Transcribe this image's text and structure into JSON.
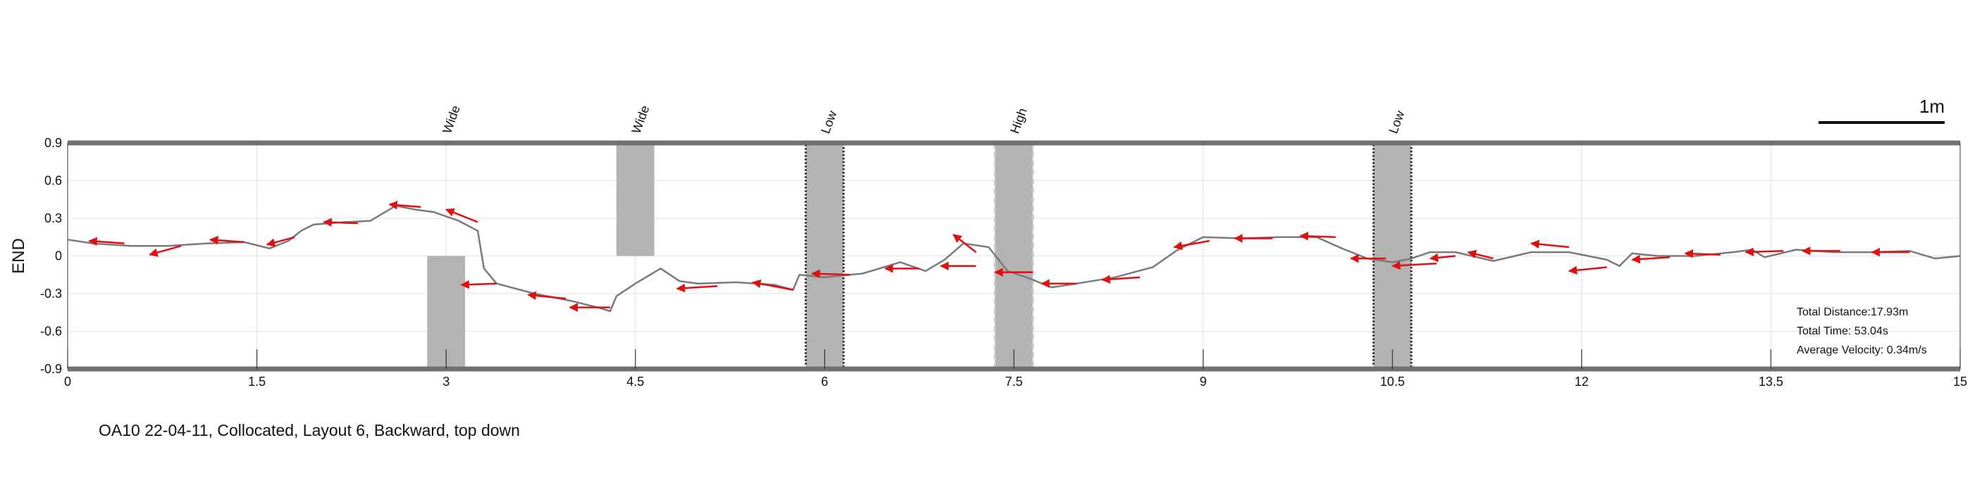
{
  "caption": "OA10 22-04-11, Collocated, Layout 6, Backward, top down",
  "colors": {
    "path": "#7a7a7a",
    "arrow": "#e01010",
    "obstacle": "#b3b3b3",
    "wall": "#707070",
    "grid": "#e2e2e2"
  },
  "chart_data": {
    "type": "line",
    "xlim": [
      0,
      15
    ],
    "ylim": [
      -0.9,
      0.9
    ],
    "ylabel": "END",
    "xlabel": "",
    "xticks": [
      0,
      1.5,
      3,
      4.5,
      6,
      7.5,
      9,
      10.5,
      12,
      13.5,
      15
    ],
    "xtick_labels": [
      "0",
      "1.5",
      "3",
      "4.5",
      "6",
      "7.5",
      "9",
      "10.5",
      "12",
      "13.5",
      "15"
    ],
    "yticks": [
      0.9,
      0.6,
      0.3,
      0,
      -0.3,
      -0.6,
      -0.9
    ],
    "ytick_labels": [
      "0.9",
      "0.6",
      "0.3",
      "0",
      "-0.3",
      "-0.6",
      "-0.9"
    ],
    "grid": true,
    "scale_bar": {
      "label": "1m",
      "length": 1
    },
    "obstacles": [
      {
        "label": "Wide",
        "x": [
          2.85,
          3.15
        ],
        "y": [
          -0.9,
          0
        ],
        "style": "solid"
      },
      {
        "label": "Wide",
        "x": [
          4.35,
          4.65
        ],
        "y": [
          0,
          0.9
        ],
        "style": "solid"
      },
      {
        "label": "Low",
        "x": [
          5.85,
          6.15
        ],
        "y": [
          -0.9,
          0.9
        ],
        "style": "dotted"
      },
      {
        "label": "High",
        "x": [
          7.35,
          7.65
        ],
        "y": [
          -0.9,
          0.9
        ],
        "style": "dashed"
      },
      {
        "label": "Low",
        "x": [
          10.35,
          10.65
        ],
        "y": [
          -0.9,
          0.9
        ],
        "style": "dotted"
      }
    ],
    "trajectory": {
      "x": [
        0,
        0.2,
        0.5,
        0.8,
        1.1,
        1.4,
        1.6,
        1.75,
        1.85,
        1.95,
        2.2,
        2.4,
        2.6,
        2.75,
        2.9,
        3.1,
        3.25,
        3.3,
        3.4,
        3.7,
        4.0,
        4.2,
        4.3,
        4.35,
        4.5,
        4.7,
        4.85,
        5.0,
        5.3,
        5.6,
        5.75,
        5.8,
        6.0,
        6.3,
        6.6,
        6.8,
        6.95,
        7.1,
        7.3,
        7.45,
        7.6,
        7.8,
        8.0,
        8.3,
        8.6,
        8.8,
        9.0,
        9.3,
        9.6,
        9.9,
        10.1,
        10.3,
        10.5,
        10.65,
        10.8,
        11.0,
        11.3,
        11.6,
        11.9,
        12.2,
        12.3,
        12.4,
        12.6,
        12.9,
        13.2,
        13.35,
        13.45,
        13.7,
        14.0,
        14.3,
        14.6,
        14.8,
        15.0
      ],
      "y": [
        0.13,
        0.1,
        0.08,
        0.08,
        0.1,
        0.11,
        0.06,
        0.12,
        0.2,
        0.25,
        0.27,
        0.28,
        0.4,
        0.37,
        0.35,
        0.28,
        0.2,
        -0.1,
        -0.22,
        -0.3,
        -0.36,
        -0.41,
        -0.44,
        -0.32,
        -0.22,
        -0.1,
        -0.2,
        -0.22,
        -0.21,
        -0.23,
        -0.27,
        -0.15,
        -0.17,
        -0.14,
        -0.05,
        -0.12,
        -0.03,
        0.1,
        0.07,
        -0.12,
        -0.17,
        -0.25,
        -0.22,
        -0.17,
        -0.09,
        0.05,
        0.15,
        0.14,
        0.15,
        0.15,
        0.06,
        -0.02,
        -0.05,
        -0.02,
        0.03,
        0.03,
        -0.04,
        0.03,
        0.03,
        -0.03,
        -0.08,
        0.02,
        0.0,
        0.0,
        0.03,
        0.05,
        -0.01,
        0.05,
        0.03,
        0.03,
        0.04,
        -0.02,
        0.0
      ]
    },
    "orientation_arrows": [
      {
        "x": 0.45,
        "y": 0.1,
        "dx": -0.28,
        "dy": 0.02
      },
      {
        "x": 0.9,
        "y": 0.08,
        "dx": -0.25,
        "dy": -0.07
      },
      {
        "x": 1.4,
        "y": 0.11,
        "dx": -0.27,
        "dy": 0.02
      },
      {
        "x": 1.8,
        "y": 0.15,
        "dx": -0.22,
        "dy": -0.06
      },
      {
        "x": 2.3,
        "y": 0.26,
        "dx": -0.27,
        "dy": 0.01
      },
      {
        "x": 2.8,
        "y": 0.39,
        "dx": -0.25,
        "dy": 0.02
      },
      {
        "x": 3.25,
        "y": 0.27,
        "dx": -0.25,
        "dy": 0.1
      },
      {
        "x": 3.4,
        "y": -0.22,
        "dx": -0.28,
        "dy": -0.01
      },
      {
        "x": 3.95,
        "y": -0.34,
        "dx": -0.3,
        "dy": 0.03
      },
      {
        "x": 4.3,
        "y": -0.41,
        "dx": -0.32,
        "dy": 0.0
      },
      {
        "x": 5.15,
        "y": -0.24,
        "dx": -0.32,
        "dy": -0.02
      },
      {
        "x": 5.75,
        "y": -0.27,
        "dx": -0.32,
        "dy": 0.06
      },
      {
        "x": 6.2,
        "y": -0.15,
        "dx": -0.3,
        "dy": 0.01
      },
      {
        "x": 6.75,
        "y": -0.1,
        "dx": -0.27,
        "dy": 0.0
      },
      {
        "x": 7.2,
        "y": -0.08,
        "dx": -0.28,
        "dy": 0.0
      },
      {
        "x": 7.2,
        "y": 0.03,
        "dx": -0.18,
        "dy": 0.14
      },
      {
        "x": 7.65,
        "y": -0.13,
        "dx": -0.3,
        "dy": 0.0
      },
      {
        "x": 8.0,
        "y": -0.22,
        "dx": -0.28,
        "dy": 0.0
      },
      {
        "x": 8.5,
        "y": -0.17,
        "dx": -0.3,
        "dy": -0.02
      },
      {
        "x": 9.05,
        "y": 0.12,
        "dx": -0.28,
        "dy": -0.05
      },
      {
        "x": 9.55,
        "y": 0.14,
        "dx": -0.3,
        "dy": 0.0
      },
      {
        "x": 10.05,
        "y": 0.15,
        "dx": -0.28,
        "dy": 0.01
      },
      {
        "x": 10.45,
        "y": -0.02,
        "dx": -0.28,
        "dy": 0.0
      },
      {
        "x": 10.85,
        "y": -0.06,
        "dx": -0.35,
        "dy": -0.02
      },
      {
        "x": 11.0,
        "y": 0.0,
        "dx": -0.2,
        "dy": -0.02
      },
      {
        "x": 11.3,
        "y": -0.02,
        "dx": -0.2,
        "dy": 0.05
      },
      {
        "x": 11.9,
        "y": 0.07,
        "dx": -0.3,
        "dy": 0.03
      },
      {
        "x": 12.2,
        "y": -0.09,
        "dx": -0.3,
        "dy": -0.03
      },
      {
        "x": 12.7,
        "y": -0.01,
        "dx": -0.3,
        "dy": -0.02
      },
      {
        "x": 13.1,
        "y": 0.01,
        "dx": -0.28,
        "dy": 0.01
      },
      {
        "x": 13.6,
        "y": 0.04,
        "dx": -0.3,
        "dy": -0.01
      },
      {
        "x": 14.05,
        "y": 0.04,
        "dx": -0.3,
        "dy": 0.0
      },
      {
        "x": 14.6,
        "y": 0.03,
        "dx": -0.3,
        "dy": 0.0
      }
    ],
    "stats": [
      "Total Distance:17.93m",
      "Total Time: 53.04s",
      "Average Velocity: 0.34m/s"
    ]
  }
}
